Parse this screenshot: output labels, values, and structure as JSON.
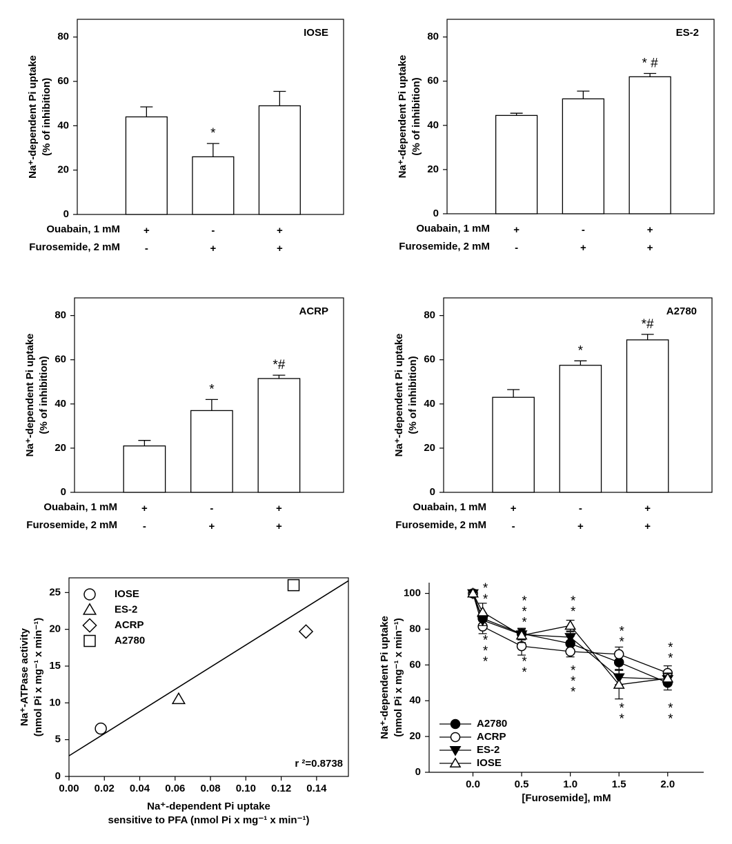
{
  "chart_data": [
    {
      "type": "bar",
      "title": "IOSE",
      "ylabel": [
        "Na⁺-dependent Pi uptake",
        "(% of inhibition)"
      ],
      "values": [
        44,
        26,
        49
      ],
      "errors": [
        4.5,
        6,
        6.5
      ],
      "annotations": [
        null,
        "*",
        null
      ],
      "color": "#ffffff",
      "edge_color": "#000000",
      "ylim": [
        0,
        88
      ],
      "yticks": [
        0,
        20,
        40,
        60,
        80
      ],
      "conditions": [
        {
          "label": "Ouabain, 1 mM",
          "values": [
            "+",
            "-",
            "+"
          ]
        },
        {
          "label": "Furosemide, 2 mM",
          "values": [
            "-",
            "+",
            "+"
          ]
        }
      ]
    },
    {
      "type": "bar",
      "title": "ES-2",
      "ylabel": [
        "Na⁺-dependent Pi uptake",
        "(% of inhibition)"
      ],
      "values": [
        44.5,
        52,
        62
      ],
      "errors": [
        1,
        3.5,
        1.5
      ],
      "annotations": [
        null,
        null,
        "* #"
      ],
      "color": "#ffffff",
      "edge_color": "#000000",
      "ylim": [
        0,
        88
      ],
      "yticks": [
        0,
        20,
        40,
        60,
        80
      ],
      "conditions": [
        {
          "label": "Ouabain, 1 mM",
          "values": [
            "+",
            "-",
            "+"
          ]
        },
        {
          "label": "Furosemide, 2 mM",
          "values": [
            "-",
            "+",
            "+"
          ]
        }
      ]
    },
    {
      "type": "bar",
      "title": "ACRP",
      "ylabel": [
        "Na⁺-dependent Pi uptake",
        "(% of inhibition)"
      ],
      "values": [
        21,
        37,
        51.5
      ],
      "errors": [
        2.5,
        5,
        1.5
      ],
      "annotations": [
        null,
        "*",
        "*#"
      ],
      "color": "#ffffff",
      "edge_color": "#000000",
      "ylim": [
        0,
        88
      ],
      "yticks": [
        0,
        20,
        40,
        60,
        80
      ],
      "conditions": [
        {
          "label": "Ouabain, 1 mM",
          "values": [
            "+",
            "-",
            "+"
          ]
        },
        {
          "label": "Furosemide, 2 mM",
          "values": [
            "-",
            "+",
            "+"
          ]
        }
      ]
    },
    {
      "type": "bar",
      "title": "A2780",
      "ylabel": [
        "Na⁺-dependent Pi uptake",
        "(% of inhibition)"
      ],
      "values": [
        43,
        57.5,
        69
      ],
      "errors": [
        3.5,
        2,
        2.5
      ],
      "annotations": [
        null,
        "*",
        "*#"
      ],
      "color": "#ffffff",
      "edge_color": "#000000",
      "ylim": [
        0,
        88
      ],
      "yticks": [
        0,
        20,
        40,
        60,
        80
      ],
      "conditions": [
        {
          "label": "Ouabain, 1 mM",
          "values": [
            "+",
            "-",
            "+"
          ]
        },
        {
          "label": "Furosemide, 2 mM",
          "values": [
            "-",
            "+",
            "+"
          ]
        }
      ]
    },
    {
      "type": "scatter",
      "ylabel": [
        "Na⁺-ATPase activity",
        "(nmol Pi x mg⁻¹ x min⁻¹)"
      ],
      "xlabel": [
        "Na⁺-dependent Pi uptake",
        "sensitive to PFA (nmol Pi x mg⁻¹ x min⁻¹)"
      ],
      "series": [
        {
          "name": "IOSE",
          "marker": "circle",
          "x": [
            0.018
          ],
          "y": [
            6.5
          ]
        },
        {
          "name": "ES-2",
          "marker": "triangle-up",
          "x": [
            0.062
          ],
          "y": [
            10.5
          ]
        },
        {
          "name": "ACRP",
          "marker": "diamond",
          "x": [
            0.134
          ],
          "y": [
            19.7
          ]
        },
        {
          "name": "A2780",
          "marker": "square",
          "x": [
            0.127
          ],
          "y": [
            26
          ]
        }
      ],
      "fit_line": {
        "x": [
          0,
          0.158
        ],
        "y": [
          2.8,
          26.6
        ]
      },
      "annotation": "r ²=0.8738",
      "legend": "upper left",
      "xlim": [
        0,
        0.158
      ],
      "ylim": [
        0,
        27
      ],
      "xticks": [
        {
          "value": 0,
          "label": "0.00"
        },
        {
          "value": 0.02,
          "label": "0.02"
        },
        {
          "value": 0.04,
          "label": "0.04"
        },
        {
          "value": 0.06,
          "label": "0.06"
        },
        {
          "value": 0.08,
          "label": "0.08"
        },
        {
          "value": 0.1,
          "label": "0.10"
        },
        {
          "value": 0.12,
          "label": "0.12"
        },
        {
          "value": 0.14,
          "label": "0.14"
        }
      ],
      "yticks": [
        0,
        5,
        10,
        15,
        20,
        25
      ]
    },
    {
      "type": "line",
      "ylabel": [
        "Na⁺-dependent Pi uptake",
        "(nmol Pi x mg⁻¹ x min⁻¹)"
      ],
      "xlabel": [
        "[Furosemide], mM"
      ],
      "x": [
        0,
        0.1,
        0.5,
        1,
        1.5,
        2
      ],
      "series": [
        {
          "name": "A2780",
          "marker": "circle",
          "fill": "#000000",
          "values": [
            100,
            86,
            77.5,
            72,
            61.5,
            50
          ],
          "errors": [
            0,
            3,
            3,
            4,
            4,
            4
          ]
        },
        {
          "name": "ACRP",
          "marker": "circle",
          "fill": "#ffffff",
          "values": [
            100,
            81.5,
            70.5,
            67.5,
            66,
            55.5
          ],
          "errors": [
            0,
            4,
            5,
            3,
            4,
            4
          ]
        },
        {
          "name": "ES-2",
          "marker": "triangle-down",
          "fill": "#000000",
          "values": [
            100,
            85,
            77,
            75.5,
            53,
            52
          ],
          "errors": [
            0,
            3,
            3,
            3,
            4,
            3
          ]
        },
        {
          "name": "IOSE",
          "marker": "triangle-up",
          "fill": "#ffffff",
          "values": [
            100,
            89.5,
            76.5,
            82,
            49,
            52.5
          ],
          "errors": [
            0,
            5,
            4,
            3,
            8,
            3
          ]
        }
      ],
      "annotations": [
        {
          "x": 0.1,
          "y": 104,
          "text": "*"
        },
        {
          "x": 0.1,
          "y": 98,
          "text": "*"
        },
        {
          "x": 0.1,
          "y": 75,
          "text": "*"
        },
        {
          "x": 0.1,
          "y": 69,
          "text": "*"
        },
        {
          "x": 0.1,
          "y": 63,
          "text": "*"
        },
        {
          "x": 0.5,
          "y": 97,
          "text": "*"
        },
        {
          "x": 0.5,
          "y": 91,
          "text": "*"
        },
        {
          "x": 0.5,
          "y": 85,
          "text": "*"
        },
        {
          "x": 0.5,
          "y": 63,
          "text": "*"
        },
        {
          "x": 0.5,
          "y": 57,
          "text": "*"
        },
        {
          "x": 1,
          "y": 97,
          "text": "*"
        },
        {
          "x": 1,
          "y": 91,
          "text": "*"
        },
        {
          "x": 1,
          "y": 58,
          "text": "*"
        },
        {
          "x": 1,
          "y": 52,
          "text": "*"
        },
        {
          "x": 1,
          "y": 46,
          "text": "*"
        },
        {
          "x": 1.5,
          "y": 80,
          "text": "*"
        },
        {
          "x": 1.5,
          "y": 74,
          "text": "*"
        },
        {
          "x": 1.5,
          "y": 37,
          "text": "*"
        },
        {
          "x": 1.5,
          "y": 31,
          "text": "*"
        },
        {
          "x": 2,
          "y": 71,
          "text": "*"
        },
        {
          "x": 2,
          "y": 65,
          "text": "*"
        },
        {
          "x": 2,
          "y": 37,
          "text": "*"
        },
        {
          "x": 2,
          "y": 31,
          "text": "*"
        }
      ],
      "legend": "lower left",
      "xlim": [
        -0.45,
        2.37
      ],
      "ylim": [
        0,
        106
      ],
      "xticks": [
        {
          "value": 0,
          "label": "0.0"
        },
        {
          "value": 0.5,
          "label": "0.5"
        },
        {
          "value": 1,
          "label": "1.0"
        },
        {
          "value": 1.5,
          "label": "1.5"
        },
        {
          "value": 2,
          "label": "2.0"
        }
      ],
      "yticks": [
        0,
        20,
        40,
        60,
        80,
        100
      ]
    }
  ]
}
